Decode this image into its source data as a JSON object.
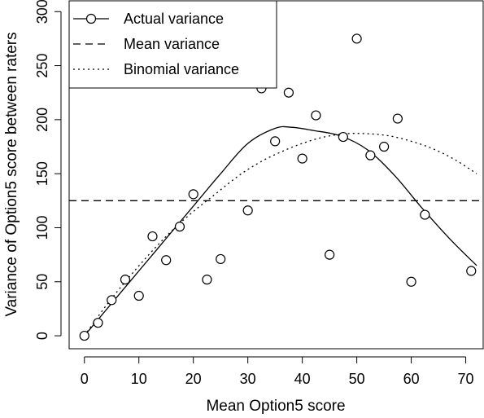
{
  "chart_data": {
    "type": "scatter",
    "title": "",
    "xlabel": "Mean Option5 score",
    "ylabel": "Variance of Option5 score between raters",
    "xlim": [
      -2.8,
      73.2
    ],
    "ylim": [
      -12,
      310
    ],
    "xticks": [
      0,
      10,
      20,
      30,
      40,
      50,
      60,
      70
    ],
    "yticks": [
      0,
      50,
      100,
      150,
      200,
      250,
      300
    ],
    "grid": false,
    "legend_position": "top-left",
    "series": [
      {
        "name": "Actual variance",
        "kind": "points",
        "marker": "open-circle",
        "points": [
          [
            0,
            0
          ],
          [
            2.5,
            12
          ],
          [
            5,
            33
          ],
          [
            7.5,
            52
          ],
          [
            10,
            37
          ],
          [
            12.5,
            92
          ],
          [
            15,
            70
          ],
          [
            17.5,
            101
          ],
          [
            20,
            131
          ],
          [
            22.5,
            52
          ],
          [
            25,
            71
          ],
          [
            30,
            116
          ],
          [
            32.5,
            229
          ],
          [
            35,
            180
          ],
          [
            37.5,
            225
          ],
          [
            40,
            164
          ],
          [
            42.5,
            204
          ],
          [
            45,
            75
          ],
          [
            47.5,
            184
          ],
          [
            50,
            275
          ],
          [
            52.5,
            167
          ],
          [
            55,
            175
          ],
          [
            57.5,
            201
          ],
          [
            60,
            50
          ],
          [
            62.5,
            112
          ],
          [
            71,
            60
          ]
        ]
      },
      {
        "name": "Actual variance",
        "kind": "smooth",
        "line_style": "solid",
        "points": [
          [
            0,
            0
          ],
          [
            5,
            30
          ],
          [
            10,
            60
          ],
          [
            15,
            90
          ],
          [
            20,
            120
          ],
          [
            25,
            150
          ],
          [
            30,
            178
          ],
          [
            35,
            192
          ],
          [
            38,
            193
          ],
          [
            42,
            190
          ],
          [
            47,
            185
          ],
          [
            52,
            172
          ],
          [
            57,
            148
          ],
          [
            62,
            118
          ],
          [
            67,
            90
          ],
          [
            72,
            65
          ]
        ]
      },
      {
        "name": "Mean variance",
        "kind": "hline",
        "line_style": "dashed",
        "y": 125
      },
      {
        "name": "Binomial variance",
        "kind": "curve",
        "line_style": "dotted",
        "points": [
          [
            0,
            0
          ],
          [
            4,
            28
          ],
          [
            8,
            53
          ],
          [
            12,
            76
          ],
          [
            16,
            97
          ],
          [
            20,
            115
          ],
          [
            24,
            131
          ],
          [
            28,
            147
          ],
          [
            32,
            160
          ],
          [
            36,
            170
          ],
          [
            40,
            178
          ],
          [
            44,
            184
          ],
          [
            48,
            187
          ],
          [
            52,
            187
          ],
          [
            56,
            185
          ],
          [
            60,
            180
          ],
          [
            64,
            173
          ],
          [
            68,
            163
          ],
          [
            72,
            150
          ]
        ]
      }
    ],
    "legend": [
      {
        "label": "Actual variance",
        "style": "solid-with-circle"
      },
      {
        "label": "Mean variance",
        "style": "dashed"
      },
      {
        "label": "Binomial variance",
        "style": "dotted"
      }
    ]
  }
}
